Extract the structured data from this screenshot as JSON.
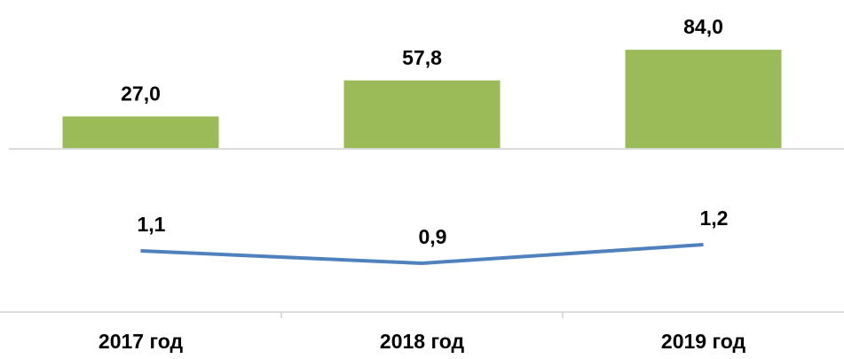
{
  "chart_data": {
    "type": "bar",
    "categories": [
      "2017 год",
      "2018 год",
      "2019 год"
    ],
    "series": [
      {
        "type": "bar",
        "color": "#9bbb59",
        "values": [
          27.0,
          57.8,
          84.0
        ],
        "value_labels": [
          "27,0",
          "57,8",
          "84,0"
        ]
      },
      {
        "type": "line",
        "axis": "y2",
        "color": "#4f81bd",
        "values": [
          1.1,
          0.9,
          1.2
        ],
        "value_labels": [
          "1,1",
          "0,9",
          "1,2"
        ]
      }
    ],
    "ylim": [
      0,
      100
    ],
    "y2lim": [
      0,
      2
    ]
  }
}
